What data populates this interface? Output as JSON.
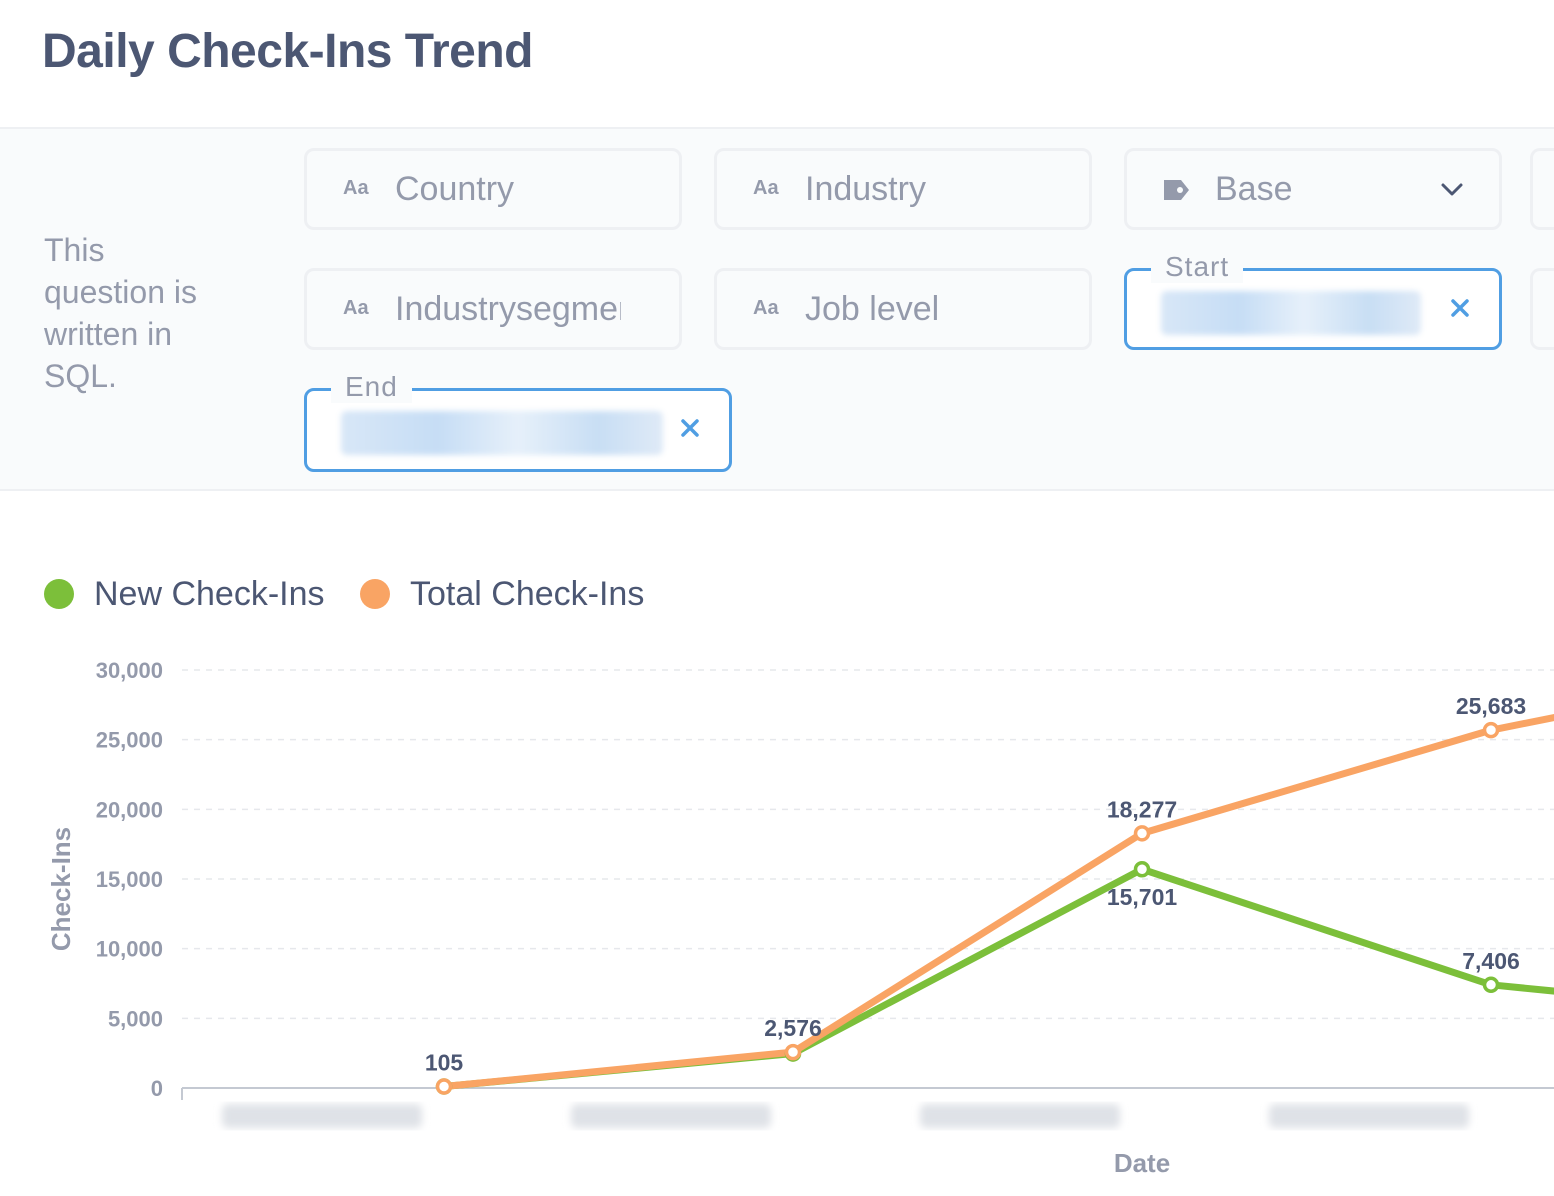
{
  "page_title": "Daily Check-Ins Trend",
  "sql_note": "This question is written in SQL.",
  "filters": {
    "country": {
      "prefix": "Aa",
      "label": "Country"
    },
    "industry": {
      "prefix": "Aa",
      "label": "Industry"
    },
    "base": {
      "label": "Base"
    },
    "industrysegment": {
      "prefix": "Aa",
      "label": "Industrysegment"
    },
    "job_level": {
      "prefix": "Aa",
      "label": "Job level"
    },
    "start": {
      "label": "Start"
    },
    "end": {
      "label": "End"
    }
  },
  "icons": {
    "type_prefix": "aa-icon",
    "tag": "tag-icon",
    "chevron": "chevron-down-icon",
    "clear": "close-icon"
  },
  "colors": {
    "new_series": "#7cbf3a",
    "total_series": "#f9a464",
    "active_border": "#509ee3",
    "clear_icon": "#509ee3",
    "text": "#4c5773",
    "muted": "#949aab"
  },
  "chart_data": {
    "type": "line",
    "xlabel": "Date",
    "ylabel": "Check-Ins",
    "ylim": [
      0,
      30000
    ],
    "yticks": [
      0,
      5000,
      10000,
      15000,
      20000,
      25000,
      30000
    ],
    "ytick_labels": [
      "0",
      "5,000",
      "10,000",
      "15,000",
      "20,000",
      "25,000",
      "30,000"
    ],
    "legend_position": "top-left",
    "grid": true,
    "x_index": [
      0,
      1,
      2,
      3
    ],
    "series": [
      {
        "name": "New Check-Ins",
        "color": "#7cbf3a",
        "values": [
          105,
          2471,
          15701,
          7406
        ],
        "labels": [
          "",
          "",
          "15,701",
          "7,406"
        ],
        "continues_right": 6900
      },
      {
        "name": "Total Check-Ins",
        "color": "#f9a464",
        "values": [
          105,
          2576,
          18277,
          25683
        ],
        "labels": [
          "105",
          "2,576",
          "18,277",
          "25,683"
        ],
        "continues_right": 26700
      }
    ]
  }
}
